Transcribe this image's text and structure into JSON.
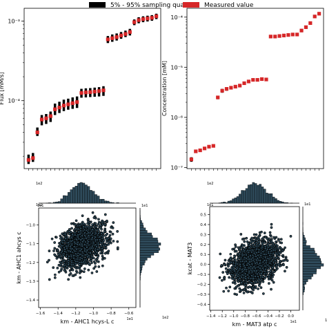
{
  "legend": {
    "items": [
      {
        "label": "5% - 95% sampling quantile",
        "color": "#000000"
      },
      {
        "label": "Measured value",
        "color": "#d62728"
      }
    ]
  },
  "chart_data": [
    {
      "type": "scatter",
      "panel": "flux",
      "ylabel": "Flux [mM/s]",
      "yscale": "log",
      "ylim": [
        1.4e-05,
        0.00145
      ],
      "yticks": [
        {
          "value": 0.001,
          "label": "10⁻³"
        },
        {
          "value": 0.0001,
          "label": "10⁻⁴"
        }
      ],
      "series": [
        {
          "name": "Measured value",
          "color": "#d62728",
          "values": [
            1.8e-05,
            1.9e-05,
            4e-05,
            5.8e-05,
            6e-05,
            6.4e-05,
            7.8e-05,
            8.2e-05,
            8.7e-05,
            9e-05,
            9.3e-05,
            9.6e-05,
            0.000125,
            0.000127,
            0.000128,
            0.00013,
            0.000132,
            0.000135,
            0.00059,
            0.00061,
            0.00063,
            0.00066,
            0.00069,
            0.00073,
            0.00097,
            0.00103,
            0.00106,
            0.00108,
            0.0011,
            0.00115
          ]
        },
        {
          "name": "5% - 95% sampling quantile",
          "color": "#000000",
          "low": [
            1.6e-05,
            1.7e-05,
            3.6e-05,
            4.9e-05,
            5.1e-05,
            5.4e-05,
            6.6e-05,
            7e-05,
            7.4e-05,
            7.7e-05,
            7.9e-05,
            8.1e-05,
            0.000109,
            0.00011,
            0.000111,
            0.000112,
            0.000113,
            0.000115,
            0.00053,
            0.00055,
            0.00057,
            0.0006,
            0.00063,
            0.00066,
            0.00089,
            0.00094,
            0.00097,
            0.00099,
            0.00101,
            0.00106
          ],
          "high": [
            2.1e-05,
            2.2e-05,
            4.6e-05,
            6.6e-05,
            6.8e-05,
            7.3e-05,
            9.2e-05,
            9.7e-05,
            0.000103,
            0.000106,
            0.00011,
            0.000113,
            0.000141,
            0.000143,
            0.000144,
            0.000146,
            0.000148,
            0.000152,
            0.00065,
            0.00068,
            0.0007,
            0.00073,
            0.00076,
            0.0008,
            0.00105,
            0.00112,
            0.00115,
            0.00117,
            0.00119,
            0.00124
          ]
        }
      ]
    },
    {
      "type": "scatter",
      "panel": "concentration",
      "ylabel": "Concentration [mM]",
      "yscale": "log",
      "ylim": [
        9.5e-08,
        0.00015
      ],
      "yticks": [
        {
          "value": 0.0001,
          "label": "10⁻⁴"
        },
        {
          "value": 1e-05,
          "label": "10⁻⁵"
        },
        {
          "value": 1e-06,
          "label": "10⁻⁶"
        },
        {
          "value": 1e-07,
          "label": "10⁻⁷"
        }
      ],
      "series": [
        {
          "name": "Measured value",
          "color": "#d62728",
          "values": [
            1.45e-07,
            2.1e-07,
            2.2e-07,
            2.4e-07,
            2.6e-07,
            2.7e-07,
            2.5e-06,
            3.4e-06,
            3.7e-06,
            3.9e-06,
            4.1e-06,
            4.3e-06,
            4.8e-06,
            5.2e-06,
            5.6e-06,
            5.6e-06,
            5.8e-06,
            5.7e-06,
            4.1e-05,
            4.1e-05,
            4.2e-05,
            4.3e-05,
            4.4e-05,
            4.5e-05,
            4.5e-05,
            5.4e-05,
            6.3e-05,
            7.6e-05,
            0.000103,
            0.000117
          ]
        },
        {
          "name": "5% - 95% sampling quantile",
          "color": "#000000",
          "low": [
            1.3e-07,
            1.95e-07,
            2.05e-07,
            2.25e-07,
            2.45e-07,
            2.55e-07,
            2.3e-06,
            3.1e-06,
            3.4e-06,
            3.6e-06,
            3.8e-06,
            4e-06,
            4.45e-06,
            4.8e-06,
            5.2e-06,
            5.2e-06,
            5.4e-06,
            5.3e-06,
            3.8e-05,
            3.8e-05,
            3.9e-05,
            4e-05,
            4.1e-05,
            4.2e-05,
            4.2e-05,
            5e-05,
            5.85e-05,
            7.05e-05,
            9.6e-05,
            0.000109
          ],
          "high": [
            1.6e-07,
            2.25e-07,
            2.35e-07,
            2.55e-07,
            2.75e-07,
            2.85e-07,
            2.7e-06,
            3.7e-06,
            4e-06,
            4.2e-06,
            4.4e-06,
            4.6e-06,
            5.15e-06,
            5.6e-06,
            6e-06,
            6e-06,
            6.2e-06,
            6.1e-06,
            4.4e-05,
            4.4e-05,
            4.5e-05,
            4.6e-05,
            4.7e-05,
            4.8e-05,
            4.8e-05,
            5.8e-05,
            6.75e-05,
            8.15e-05,
            0.00011,
            0.000125
          ]
        }
      ]
    },
    {
      "type": "scatter",
      "panel": "joint-left",
      "xlabel": "km - AHC1 hcys-L c",
      "ylabel": "km - AHC1 ahcys c",
      "xlim": [
        -1.62,
        -0.52
      ],
      "ylim": [
        -1.44,
        -0.91
      ],
      "x_offset_label": "1e1",
      "y_offset_label": "1e1",
      "xticks": [
        -1.6,
        -1.4,
        -1.2,
        -1.0,
        -0.8,
        -0.6
      ],
      "yticks": [
        -1.4,
        -1.3,
        -1.2,
        -1.1,
        -1.0
      ],
      "n_points": 1800,
      "x_distribution": {
        "mean": -1.13,
        "sd": 0.13
      },
      "y_distribution": {
        "mean": -1.11,
        "sd": 0.055
      },
      "hist_top_offset_label": "1e2",
      "hist_right_offset_label": "1e2",
      "hist_top_axis_label": "1e1",
      "hist_right_axis_label": "1e1"
    },
    {
      "type": "scatter",
      "panel": "joint-right",
      "xlabel": "km - MAT3 atp c",
      "ylabel": "kcat - MAT3",
      "xlim": [
        -1.42,
        0.15
      ],
      "ylim": [
        -0.46,
        0.58
      ],
      "x_offset_label": "1e1",
      "y_offset_label": "",
      "xticks": [
        -1.4,
        -1.2,
        -1.0,
        -0.8,
        -0.6,
        -0.4,
        -0.2,
        0.0
      ],
      "yticks": [
        -0.4,
        -0.3,
        -0.2,
        -0.1,
        0.0,
        0.1,
        0.2,
        0.3,
        0.4,
        0.5
      ],
      "n_points": 1800,
      "x_distribution": {
        "mean": -0.63,
        "sd": 0.2
      },
      "y_distribution": {
        "mean": 0.02,
        "sd": 0.11
      },
      "hist_top_offset_label": "1e2",
      "hist_right_offset_label": "1e2",
      "hist_top_axis_label": "1e1",
      "hist_right_axis_label": "1e1"
    }
  ]
}
